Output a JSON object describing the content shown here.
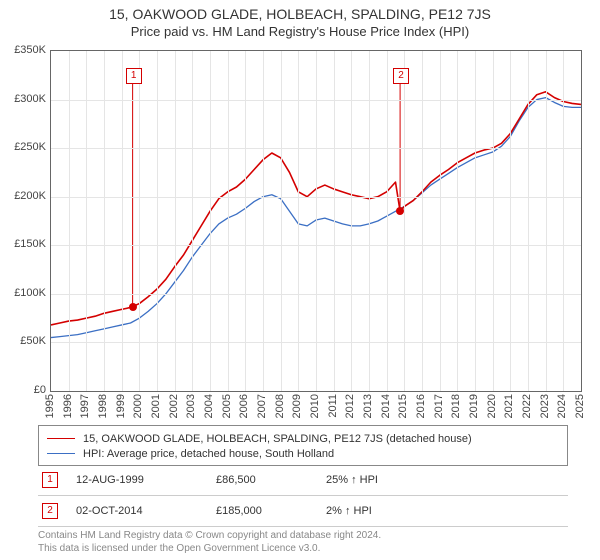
{
  "title": "15, OAKWOOD GLADE, HOLBEACH, SPALDING, PE12 7JS",
  "subtitle": "Price paid vs. HM Land Registry's House Price Index (HPI)",
  "chart": {
    "type": "line",
    "background_color": "#ffffff",
    "grid_color": "#e5e5e5",
    "axis_color": "#666666",
    "y_axis": {
      "min": 0,
      "max": 350,
      "step": 50,
      "prefix": "£",
      "suffix": "K",
      "label_fontsize": 11
    },
    "x_axis": {
      "min": 1995,
      "max": 2025,
      "ticks": [
        1995,
        1996,
        1997,
        1998,
        1999,
        2000,
        2001,
        2002,
        2003,
        2004,
        2005,
        2006,
        2007,
        2008,
        2009,
        2010,
        2011,
        2012,
        2013,
        2014,
        2015,
        2016,
        2017,
        2018,
        2019,
        2020,
        2021,
        2022,
        2023,
        2024,
        2025
      ],
      "label_fontsize": 11,
      "label_rotation": -90
    },
    "series": [
      {
        "id": "property",
        "label": "15, OAKWOOD GLADE, HOLBEACH, SPALDING, PE12 7JS (detached house)",
        "color": "#d40000",
        "line_width": 1.6,
        "points": [
          [
            1995.0,
            68
          ],
          [
            1995.5,
            70
          ],
          [
            1996.0,
            72
          ],
          [
            1996.5,
            73
          ],
          [
            1997.0,
            75
          ],
          [
            1997.5,
            77
          ],
          [
            1998.0,
            80
          ],
          [
            1998.5,
            82
          ],
          [
            1999.0,
            84
          ],
          [
            1999.5,
            86
          ],
          [
            2000.0,
            90
          ],
          [
            2000.5,
            97
          ],
          [
            2001.0,
            105
          ],
          [
            2001.5,
            115
          ],
          [
            2002.0,
            128
          ],
          [
            2002.5,
            140
          ],
          [
            2003.0,
            155
          ],
          [
            2003.5,
            170
          ],
          [
            2004.0,
            185
          ],
          [
            2004.5,
            198
          ],
          [
            2005.0,
            205
          ],
          [
            2005.5,
            210
          ],
          [
            2006.0,
            218
          ],
          [
            2006.5,
            228
          ],
          [
            2007.0,
            238
          ],
          [
            2007.5,
            245
          ],
          [
            2008.0,
            240
          ],
          [
            2008.5,
            225
          ],
          [
            2009.0,
            205
          ],
          [
            2009.5,
            200
          ],
          [
            2010.0,
            208
          ],
          [
            2010.5,
            212
          ],
          [
            2011.0,
            208
          ],
          [
            2011.5,
            205
          ],
          [
            2012.0,
            202
          ],
          [
            2012.5,
            200
          ],
          [
            2013.0,
            198
          ],
          [
            2013.5,
            200
          ],
          [
            2014.0,
            205
          ],
          [
            2014.5,
            215
          ],
          [
            2014.76,
            185
          ],
          [
            2015.0,
            190
          ],
          [
            2015.5,
            196
          ],
          [
            2016.0,
            205
          ],
          [
            2016.5,
            215
          ],
          [
            2017.0,
            222
          ],
          [
            2017.5,
            228
          ],
          [
            2018.0,
            235
          ],
          [
            2018.5,
            240
          ],
          [
            2019.0,
            245
          ],
          [
            2019.5,
            248
          ],
          [
            2020.0,
            250
          ],
          [
            2020.5,
            255
          ],
          [
            2021.0,
            265
          ],
          [
            2021.5,
            280
          ],
          [
            2022.0,
            295
          ],
          [
            2022.5,
            305
          ],
          [
            2023.0,
            308
          ],
          [
            2023.5,
            302
          ],
          [
            2024.0,
            298
          ],
          [
            2024.5,
            296
          ],
          [
            2025.0,
            295
          ]
        ]
      },
      {
        "id": "hpi",
        "label": "HPI: Average price, detached house, South Holland",
        "color": "#3b6fc4",
        "line_width": 1.3,
        "points": [
          [
            1995.0,
            55
          ],
          [
            1995.5,
            56
          ],
          [
            1996.0,
            57
          ],
          [
            1996.5,
            58
          ],
          [
            1997.0,
            60
          ],
          [
            1997.5,
            62
          ],
          [
            1998.0,
            64
          ],
          [
            1998.5,
            66
          ],
          [
            1999.0,
            68
          ],
          [
            1999.5,
            70
          ],
          [
            2000.0,
            75
          ],
          [
            2000.5,
            82
          ],
          [
            2001.0,
            90
          ],
          [
            2001.5,
            100
          ],
          [
            2002.0,
            112
          ],
          [
            2002.5,
            124
          ],
          [
            2003.0,
            138
          ],
          [
            2003.5,
            150
          ],
          [
            2004.0,
            162
          ],
          [
            2004.5,
            172
          ],
          [
            2005.0,
            178
          ],
          [
            2005.5,
            182
          ],
          [
            2006.0,
            188
          ],
          [
            2006.5,
            195
          ],
          [
            2007.0,
            200
          ],
          [
            2007.5,
            202
          ],
          [
            2008.0,
            198
          ],
          [
            2008.5,
            185
          ],
          [
            2009.0,
            172
          ],
          [
            2009.5,
            170
          ],
          [
            2010.0,
            176
          ],
          [
            2010.5,
            178
          ],
          [
            2011.0,
            175
          ],
          [
            2011.5,
            172
          ],
          [
            2012.0,
            170
          ],
          [
            2012.5,
            170
          ],
          [
            2013.0,
            172
          ],
          [
            2013.5,
            175
          ],
          [
            2014.0,
            180
          ],
          [
            2014.5,
            185
          ],
          [
            2015.0,
            190
          ],
          [
            2015.5,
            196
          ],
          [
            2016.0,
            204
          ],
          [
            2016.5,
            212
          ],
          [
            2017.0,
            218
          ],
          [
            2017.5,
            224
          ],
          [
            2018.0,
            230
          ],
          [
            2018.5,
            235
          ],
          [
            2019.0,
            240
          ],
          [
            2019.5,
            243
          ],
          [
            2020.0,
            246
          ],
          [
            2020.5,
            252
          ],
          [
            2021.0,
            262
          ],
          [
            2021.5,
            278
          ],
          [
            2022.0,
            292
          ],
          [
            2022.5,
            300
          ],
          [
            2023.0,
            302
          ],
          [
            2023.5,
            297
          ],
          [
            2024.0,
            293
          ],
          [
            2024.5,
            292
          ],
          [
            2025.0,
            292
          ]
        ]
      }
    ],
    "markers": [
      {
        "n": "1",
        "x": 1999.62,
        "y_box": 325,
        "y_dot": 86,
        "box_color": "#d40000",
        "dot_color": "#d40000"
      },
      {
        "n": "2",
        "x": 2014.76,
        "y_box": 325,
        "y_dot": 185,
        "box_color": "#d40000",
        "dot_color": "#d40000"
      }
    ],
    "marker_vline_color": "#d40000"
  },
  "legend": {
    "border_color": "#888888",
    "fontsize": 11
  },
  "sales": [
    {
      "n": "1",
      "color": "#d40000",
      "date": "12-AUG-1999",
      "price": "£86,500",
      "diff": "25% ↑ HPI"
    },
    {
      "n": "2",
      "color": "#d40000",
      "date": "02-OCT-2014",
      "price": "£185,000",
      "diff": "2% ↑ HPI"
    }
  ],
  "attribution": {
    "line1": "Contains HM Land Registry data © Crown copyright and database right 2024.",
    "line2": "This data is licensed under the Open Government Licence v3.0."
  }
}
